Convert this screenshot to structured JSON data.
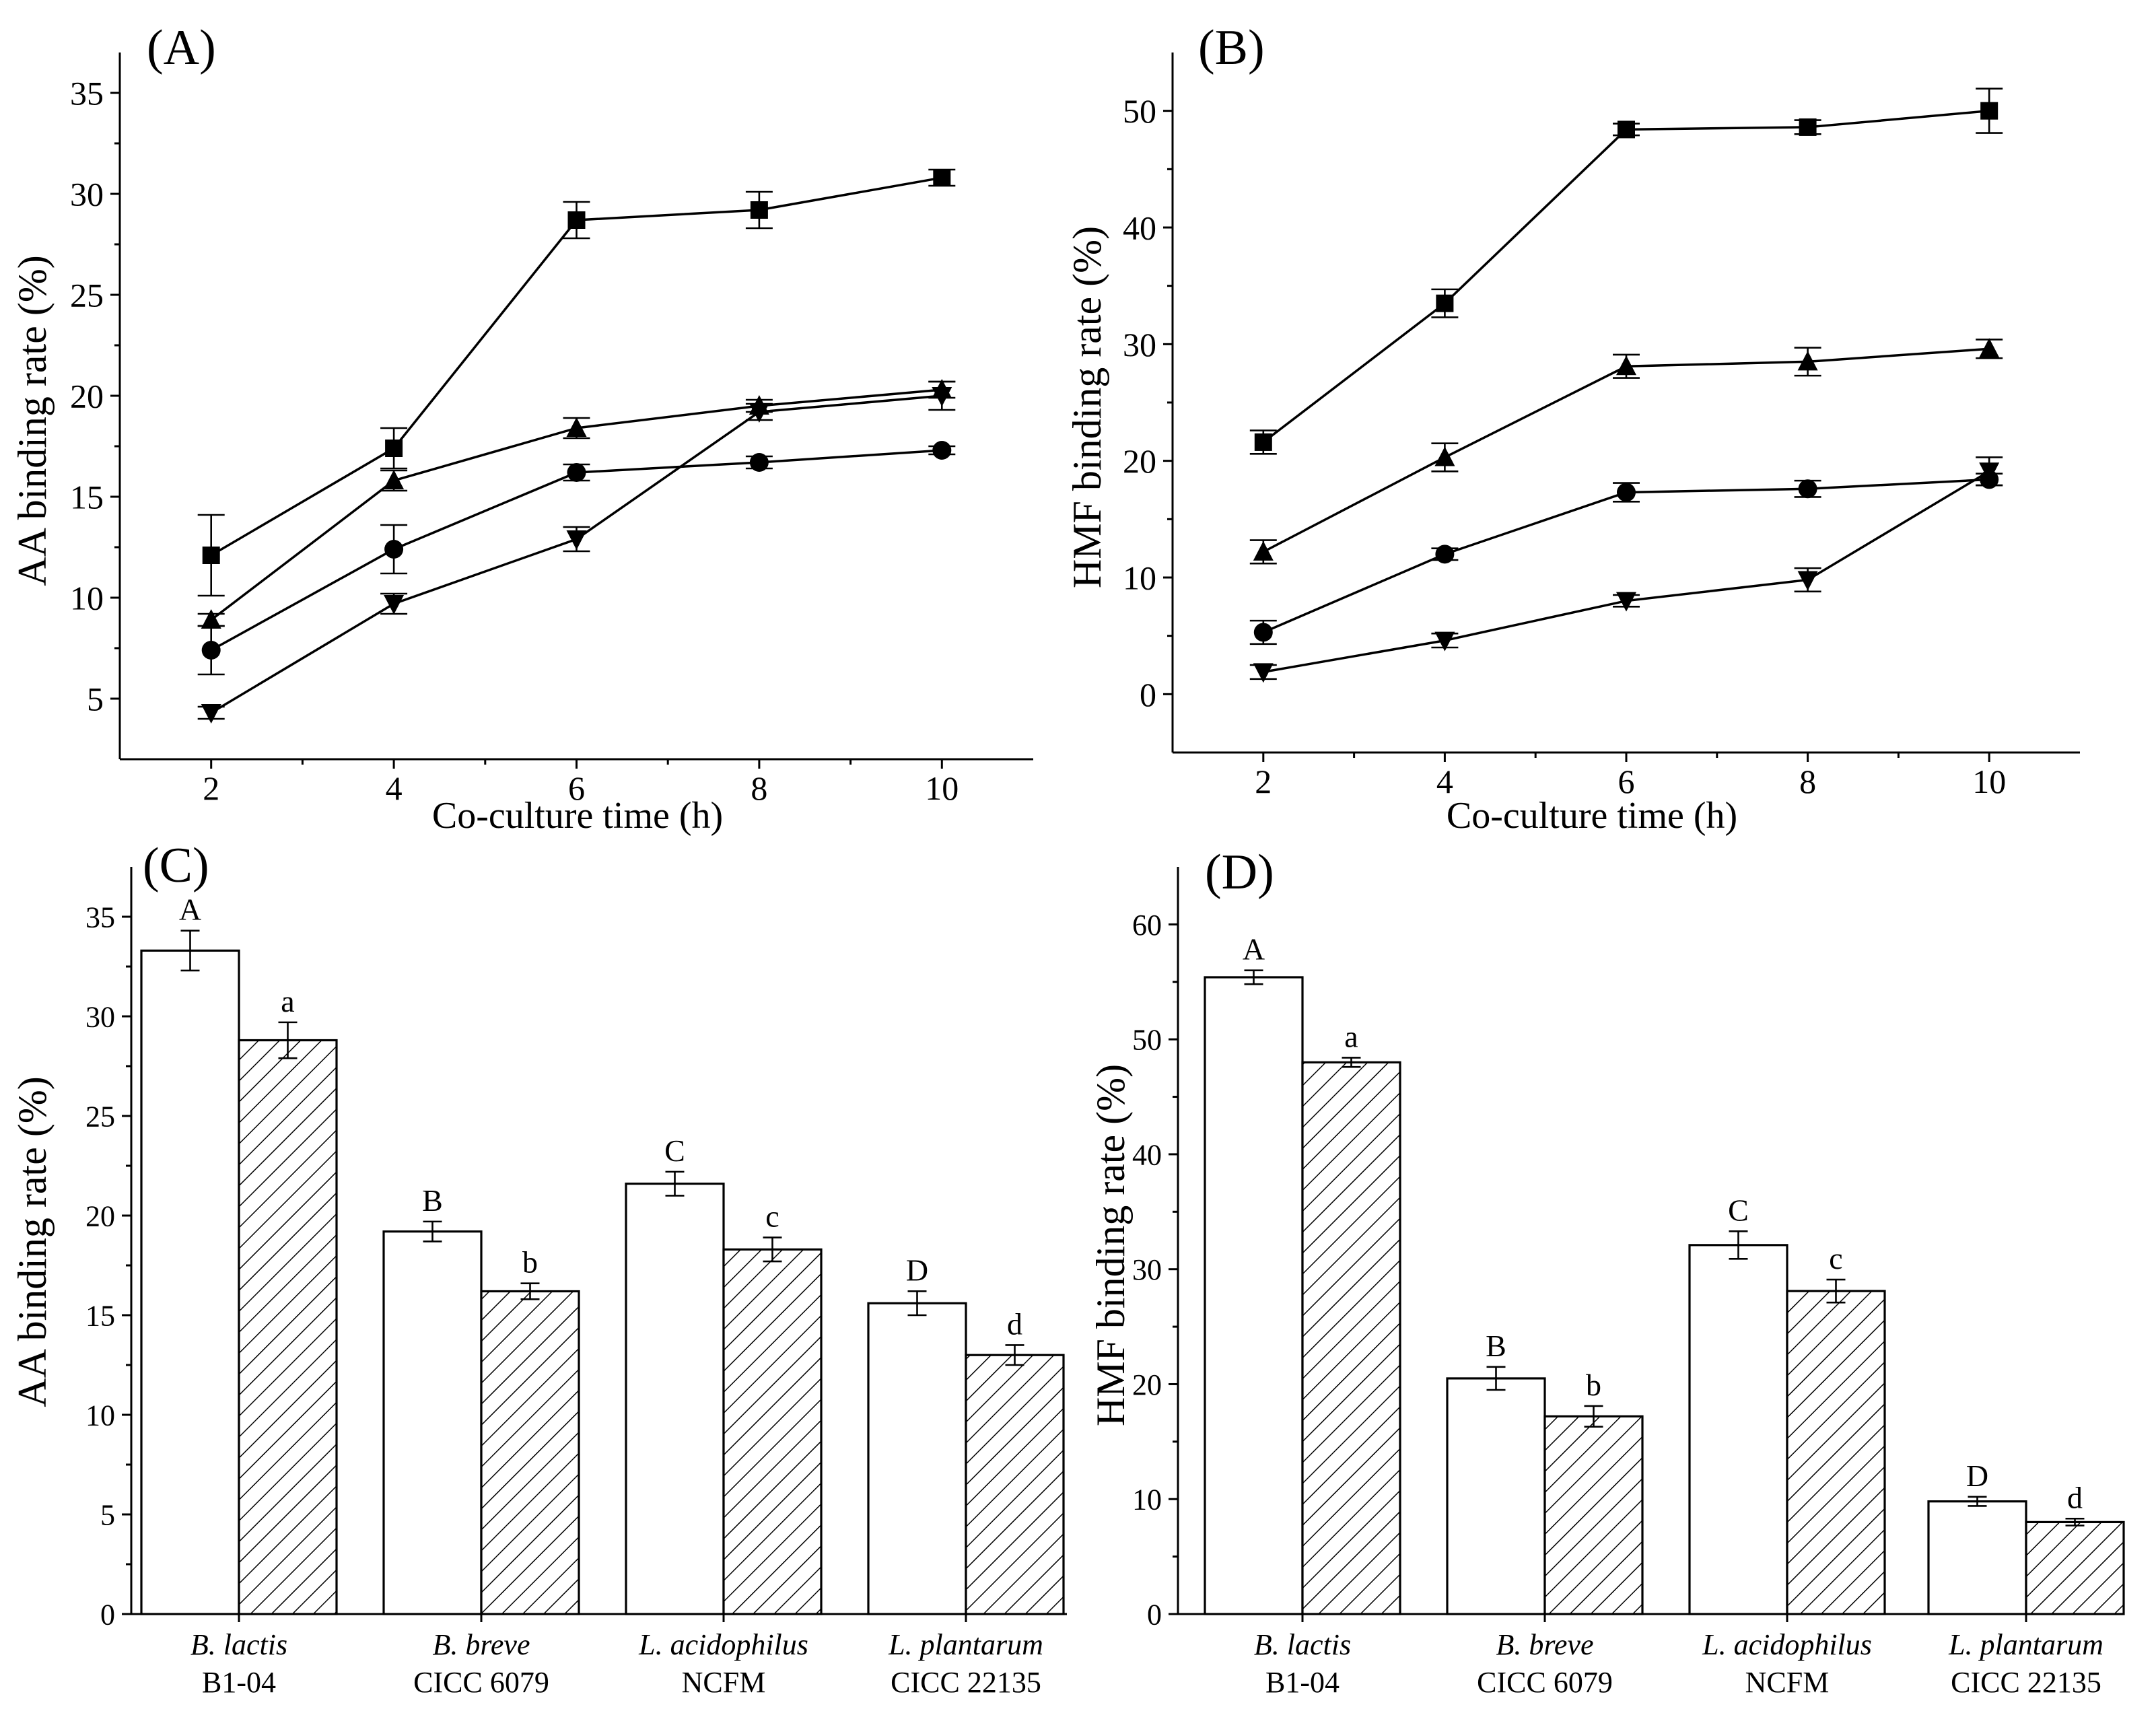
{
  "figure": {
    "hatch_color": "#000000",
    "bar_fill_open": "#ffffff"
  },
  "chart_data": [
    {
      "panel": "A",
      "type": "line",
      "title": "(A)",
      "xlabel": "Co-culture time (h)",
      "ylabel": "AA binding rate (%)",
      "xlim": [
        1,
        11
      ],
      "ylim": [
        2,
        37
      ],
      "xticks": [
        2,
        4,
        6,
        8,
        10
      ],
      "yticks": [
        5,
        10,
        15,
        20,
        25,
        30,
        35
      ],
      "x": [
        2,
        4,
        6,
        8,
        10
      ],
      "series": [
        {
          "name": "square",
          "marker": "square",
          "values": [
            12.1,
            17.4,
            28.7,
            29.2,
            30.8
          ],
          "errors": [
            2.0,
            1.0,
            0.9,
            0.9,
            0.4
          ]
        },
        {
          "name": "triangle",
          "marker": "triangle",
          "values": [
            8.9,
            15.8,
            18.4,
            19.5,
            20.3
          ],
          "errors": [
            0.3,
            0.5,
            0.5,
            0.3,
            0.4
          ]
        },
        {
          "name": "circle",
          "marker": "circle",
          "values": [
            7.4,
            12.4,
            16.2,
            16.7,
            17.3
          ],
          "errors": [
            1.2,
            1.2,
            0.4,
            0.3,
            0.2
          ]
        },
        {
          "name": "down-triangle",
          "marker": "down-triangle",
          "values": [
            4.3,
            9.7,
            12.9,
            19.2,
            20.0
          ],
          "errors": [
            0.3,
            0.5,
            0.6,
            0.4,
            0.7
          ]
        }
      ]
    },
    {
      "panel": "B",
      "type": "line",
      "title": "(B)",
      "xlabel": "Co-culture time (h)",
      "ylabel": "HMF binding rate (%)",
      "xlim": [
        1,
        11
      ],
      "ylim": [
        -5,
        55
      ],
      "xticks": [
        2,
        4,
        6,
        8,
        10
      ],
      "yticks": [
        0,
        10,
        20,
        30,
        40,
        50
      ],
      "x": [
        2,
        4,
        6,
        8,
        10
      ],
      "series": [
        {
          "name": "square",
          "marker": "square",
          "values": [
            21.6,
            33.5,
            48.4,
            48.6,
            50.0
          ],
          "errors": [
            1.0,
            1.2,
            0.5,
            0.6,
            1.9
          ]
        },
        {
          "name": "triangle",
          "marker": "triangle",
          "values": [
            12.2,
            20.3,
            28.1,
            28.5,
            29.6
          ],
          "errors": [
            1.0,
            1.2,
            1.0,
            1.2,
            0.8
          ]
        },
        {
          "name": "circle",
          "marker": "circle",
          "values": [
            5.3,
            12.0,
            17.3,
            17.6,
            18.4
          ],
          "errors": [
            1.0,
            0.5,
            0.8,
            0.7,
            0.5
          ]
        },
        {
          "name": "down-triangle",
          "marker": "down-triangle",
          "values": [
            1.9,
            4.6,
            8.0,
            9.8,
            19.1
          ],
          "errors": [
            0.6,
            0.6,
            0.5,
            1.0,
            1.2
          ]
        }
      ]
    },
    {
      "panel": "C",
      "type": "bar",
      "title": "(C)",
      "xlabel": "",
      "ylabel": "AA binding rate (%)",
      "ylim": [
        0,
        37.5
      ],
      "yticks": [
        0,
        5,
        10,
        15,
        20,
        25,
        30,
        35
      ],
      "categories": [
        {
          "species": "B. lactis",
          "strain": "B1-04"
        },
        {
          "species": "B. breve",
          "strain": "CICC 6079"
        },
        {
          "species": "L. acidophilus",
          "strain": "NCFM"
        },
        {
          "species": "L. plantarum",
          "strain": "CICC 22135"
        }
      ],
      "series": [
        {
          "name": "open",
          "pattern": "open",
          "values": [
            33.3,
            19.2,
            21.6,
            15.6
          ],
          "errors": [
            1.0,
            0.5,
            0.6,
            0.6
          ],
          "labels": [
            "A",
            "B",
            "C",
            "D"
          ]
        },
        {
          "name": "hatched",
          "pattern": "hatched",
          "values": [
            28.8,
            16.2,
            18.3,
            13.0
          ],
          "errors": [
            0.9,
            0.4,
            0.6,
            0.5
          ],
          "labels": [
            "a",
            "b",
            "c",
            "d"
          ]
        }
      ]
    },
    {
      "panel": "D",
      "type": "bar",
      "title": "(D)",
      "xlabel": "",
      "ylabel": "HMF binding rate (%)",
      "ylim": [
        0,
        65
      ],
      "yticks": [
        0,
        10,
        20,
        30,
        40,
        50,
        60
      ],
      "categories": [
        {
          "species": "B. lactis",
          "strain": "B1-04"
        },
        {
          "species": "B. breve",
          "strain": "CICC 6079"
        },
        {
          "species": "L. acidophilus",
          "strain": "NCFM"
        },
        {
          "species": "L. plantarum",
          "strain": "CICC 22135"
        }
      ],
      "series": [
        {
          "name": "open",
          "pattern": "open",
          "values": [
            55.4,
            20.5,
            32.1,
            9.8
          ],
          "errors": [
            0.6,
            1.0,
            1.2,
            0.4
          ],
          "labels": [
            "A",
            "B",
            "C",
            "D"
          ]
        },
        {
          "name": "hatched",
          "pattern": "hatched",
          "values": [
            48.0,
            17.2,
            28.1,
            8.0
          ],
          "errors": [
            0.4,
            0.9,
            1.0,
            0.3
          ],
          "labels": [
            "a",
            "b",
            "c",
            "d"
          ]
        }
      ]
    }
  ]
}
